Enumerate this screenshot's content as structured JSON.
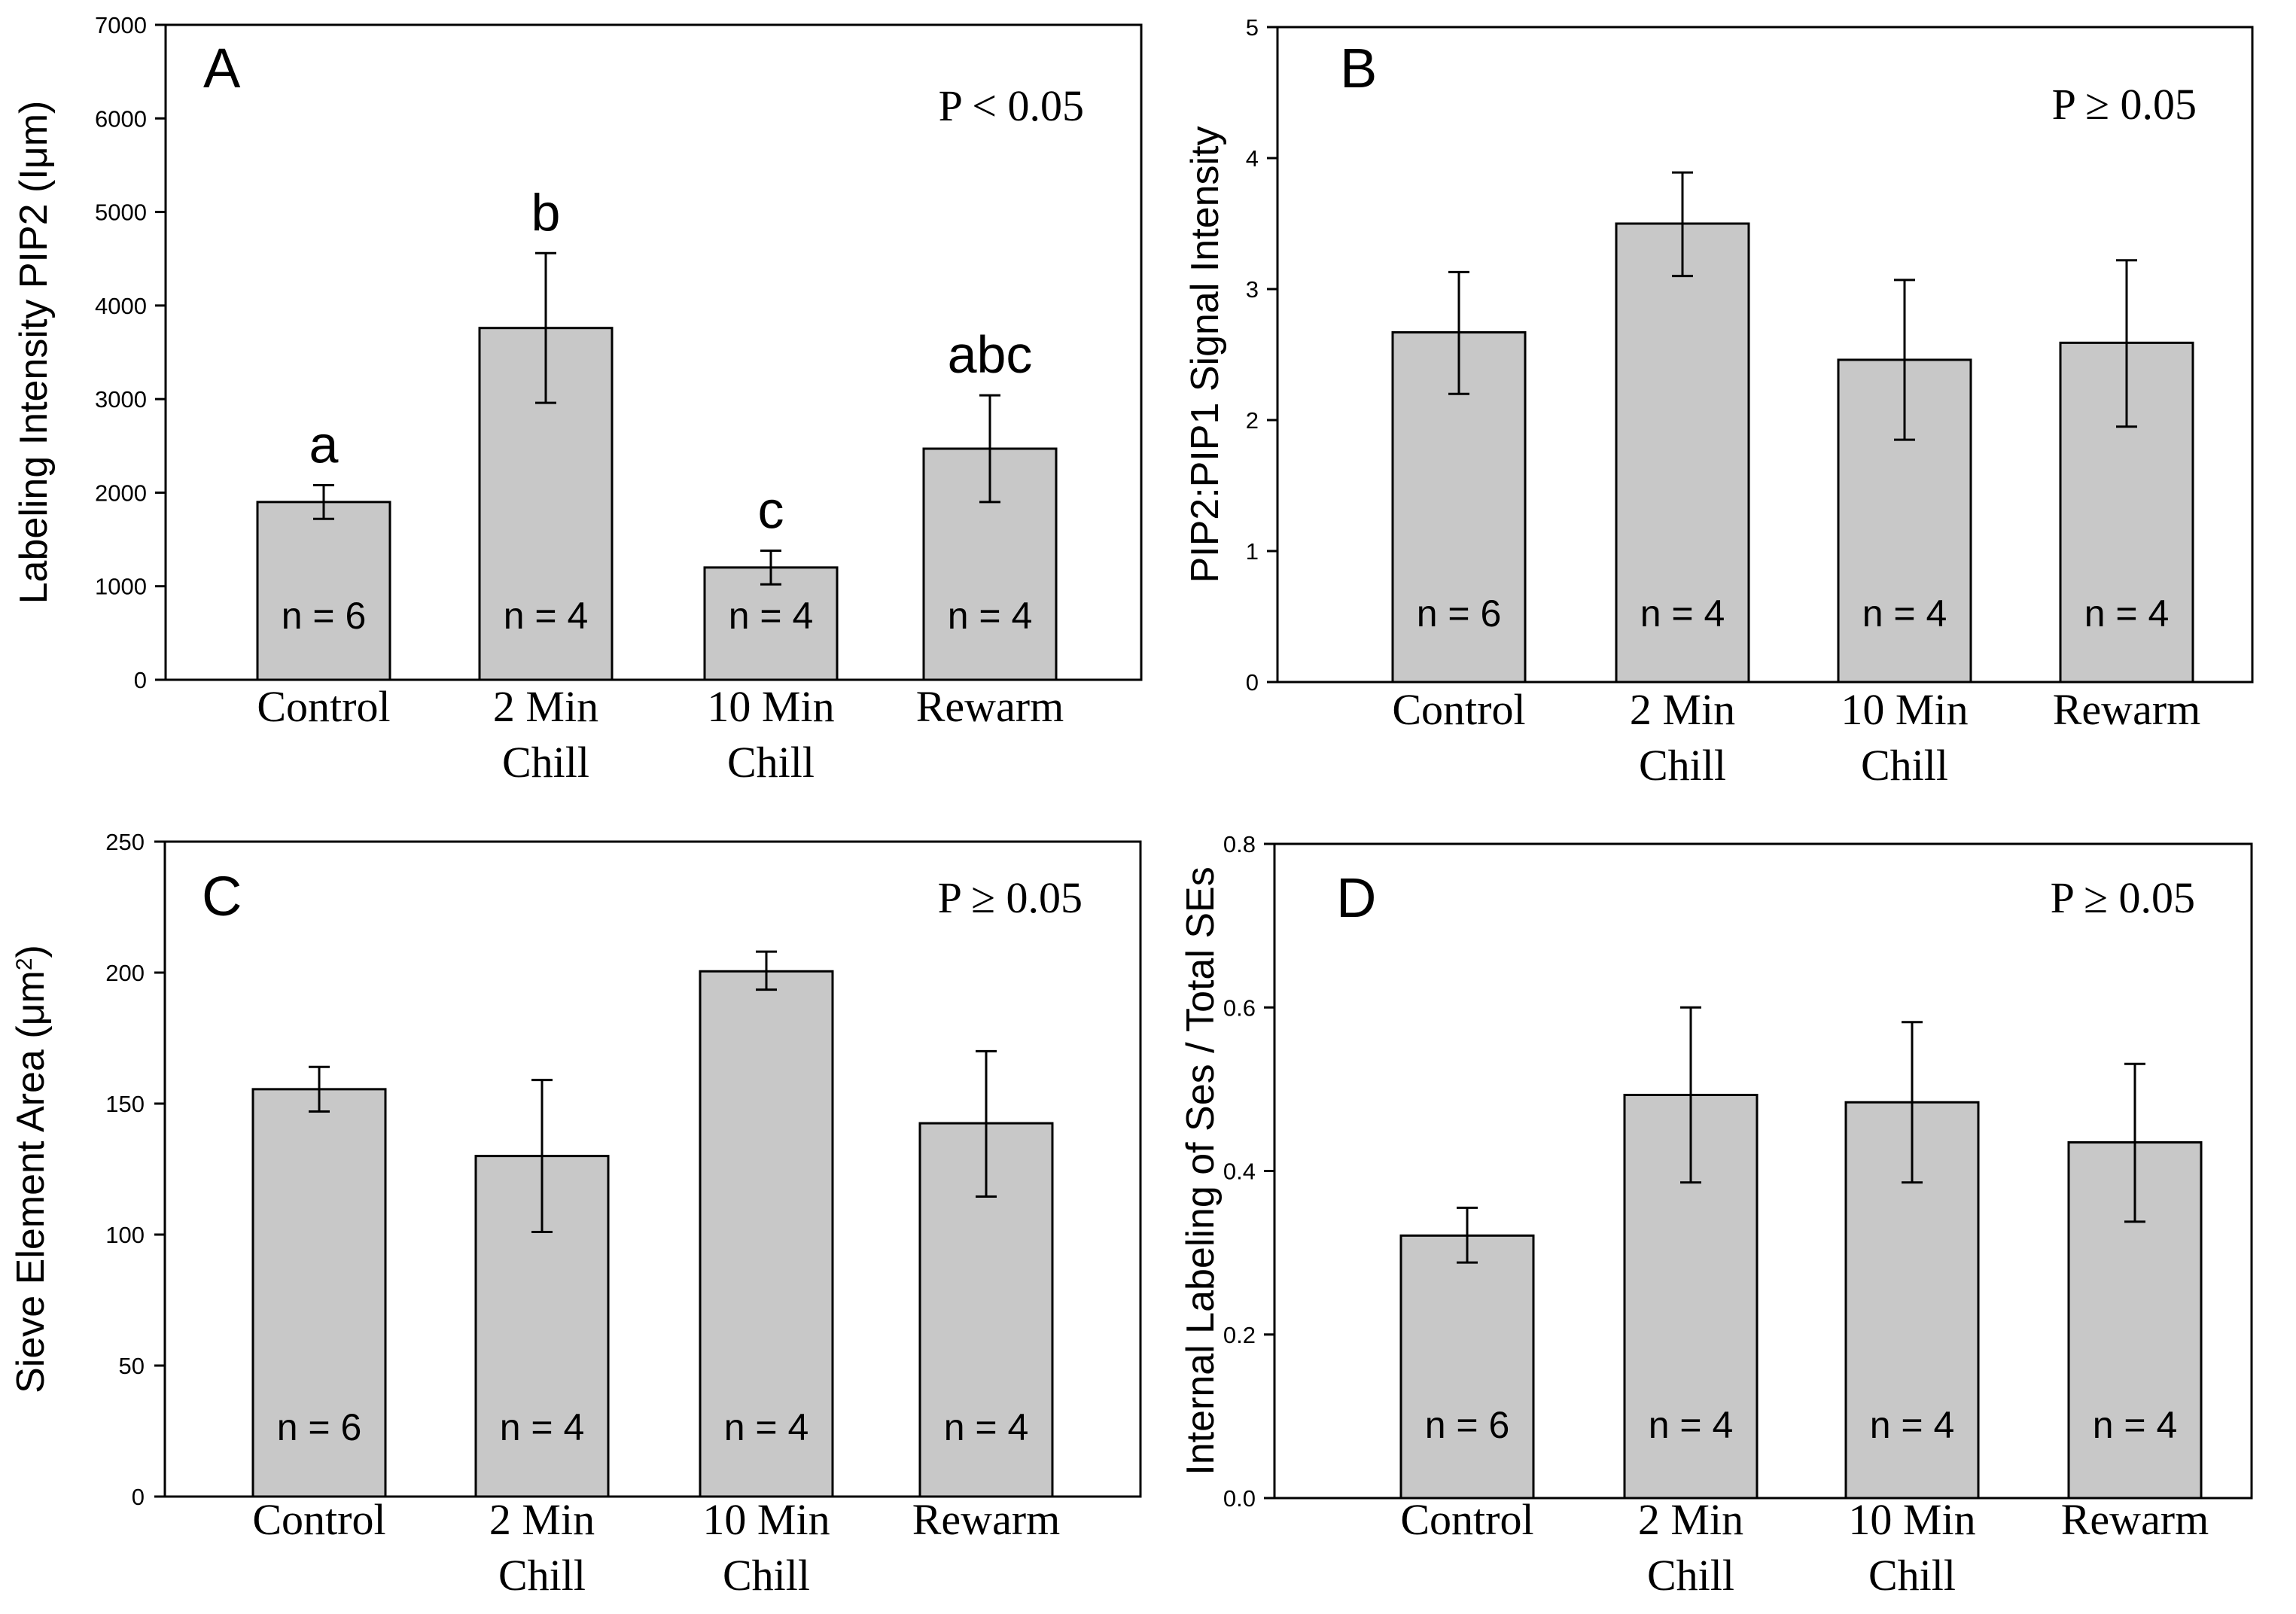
{
  "chart_data": [
    {
      "panel": "A",
      "type": "bar",
      "ylabel": "Labeling Intensity PIP2 (Iμm)",
      "stat_label": "P < 0.05",
      "ylim": [
        0,
        7000
      ],
      "yticks": [
        0,
        1000,
        2000,
        3000,
        4000,
        5000,
        6000,
        7000
      ],
      "ytick_labels": [
        "0",
        "1000",
        "2000",
        "3000",
        "4000",
        "5000",
        "6000",
        "7000"
      ],
      "categories": [
        [
          "Control"
        ],
        [
          "2 Min",
          "Chill"
        ],
        [
          "10 Min",
          "Chill"
        ],
        [
          "Rewarm"
        ]
      ],
      "values": [
        1900,
        3760,
        1200,
        2470
      ],
      "err_upper": [
        2080,
        4560,
        1380,
        3040
      ],
      "err_lower": [
        1720,
        2960,
        1020,
        1900
      ],
      "n_labels": [
        "n = 6",
        "n = 4",
        "n = 4",
        "n = 4"
      ],
      "group_letters": [
        "a",
        "b",
        "c",
        "abc"
      ]
    },
    {
      "panel": "B",
      "type": "bar",
      "ylabel": "PIP2:PIP1 Signal Intensity",
      "stat_label": "P ≥ 0.05",
      "ylim": [
        0,
        5
      ],
      "yticks": [
        0,
        1,
        2,
        3,
        4,
        5
      ],
      "ytick_labels": [
        "0",
        "1",
        "2",
        "3",
        "4",
        "5"
      ],
      "categories": [
        [
          "Control"
        ],
        [
          "2 Min",
          "Chill"
        ],
        [
          "10 Min",
          "Chill"
        ],
        [
          "Rewarm"
        ]
      ],
      "values": [
        2.67,
        3.5,
        2.46,
        2.59
      ],
      "err_upper": [
        3.13,
        3.89,
        3.07,
        3.22
      ],
      "err_lower": [
        2.2,
        3.1,
        1.85,
        1.95
      ],
      "n_labels": [
        "n = 6",
        "n = 4",
        "n = 4",
        "n = 4"
      ],
      "group_letters": []
    },
    {
      "panel": "C",
      "type": "bar",
      "ylabel": "Sieve Element Area (μm",
      "ylabel_sup": "2",
      "ylabel_close": ")",
      "stat_label": "P ≥ 0.05",
      "ylim": [
        0,
        250
      ],
      "yticks": [
        0,
        50,
        100,
        150,
        200,
        250
      ],
      "ytick_labels": [
        "0",
        "50",
        "100",
        "150",
        "200",
        "250"
      ],
      "categories": [
        [
          "Control"
        ],
        [
          "2 Min",
          "Chill"
        ],
        [
          "10 Min",
          "Chill"
        ],
        [
          "Rewarm"
        ]
      ],
      "values": [
        155.5,
        130,
        200.5,
        142.5
      ],
      "err_upper": [
        164,
        159,
        208,
        170
      ],
      "err_lower": [
        147,
        101,
        193.5,
        114.5
      ],
      "n_labels": [
        "n = 6",
        "n = 4",
        "n = 4",
        "n = 4"
      ],
      "group_letters": []
    },
    {
      "panel": "D",
      "type": "bar",
      "ylabel": "Internal Labeling of Ses / Total SEs",
      "stat_label": "P ≥ 0.05",
      "ylim": [
        0,
        0.8
      ],
      "yticks": [
        0,
        0.2,
        0.4,
        0.6,
        0.8
      ],
      "ytick_labels": [
        "0.0",
        "0.2",
        "0.4",
        "0.6",
        "0.8"
      ],
      "categories": [
        [
          "Control"
        ],
        [
          "2 Min",
          "Chill"
        ],
        [
          "10 Min",
          "Chill"
        ],
        [
          "Rewarm"
        ]
      ],
      "values": [
        0.321,
        0.493,
        0.484,
        0.435
      ],
      "err_upper": [
        0.355,
        0.6,
        0.582,
        0.531
      ],
      "err_lower": [
        0.288,
        0.386,
        0.386,
        0.338
      ],
      "n_labels": [
        "n = 6",
        "n = 4",
        "n = 4",
        "n = 4"
      ],
      "group_letters": []
    }
  ],
  "colors": {
    "bar_fill": "#c8c8c8",
    "stroke": "#000000",
    "background": "#ffffff"
  }
}
